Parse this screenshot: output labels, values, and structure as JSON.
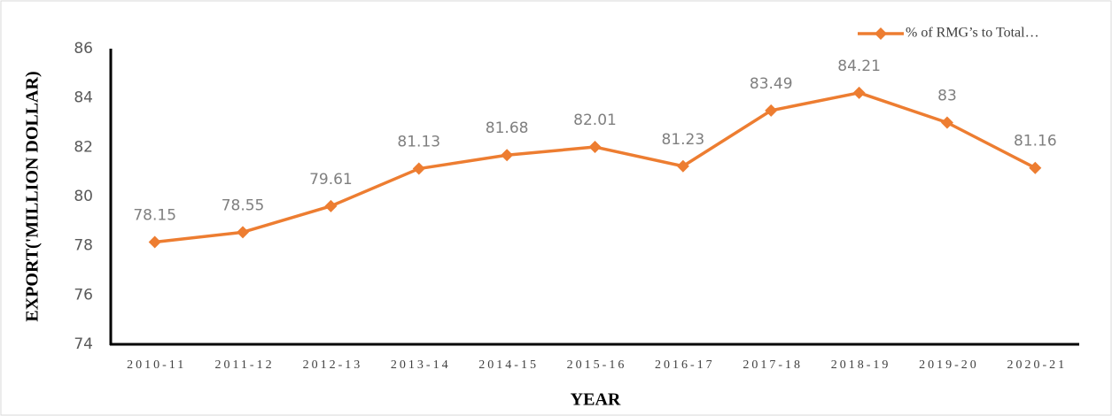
{
  "chart_data": {
    "type": "line",
    "x_label": "YEAR",
    "y_label": "EXPORT('MILLION DOLLAR)",
    "categories": [
      "2010-11",
      "2011-12",
      "2012-13",
      "2013-14",
      "2014-15",
      "2015-16",
      "2016-17",
      "2017-18",
      "2018-19",
      "2019-20",
      "2020-21"
    ],
    "series": [
      {
        "name": "% of RMG’s to Total…",
        "color": "#ed7d31",
        "values": [
          78.15,
          78.55,
          79.61,
          81.13,
          81.68,
          82.01,
          81.23,
          83.49,
          84.21,
          83,
          81.16
        ]
      }
    ],
    "ylim": [
      74,
      86
    ],
    "yticks": [
      74,
      76,
      78,
      80,
      82,
      84,
      86
    ],
    "grid": false,
    "legend": "top-right",
    "data_labels": true
  }
}
